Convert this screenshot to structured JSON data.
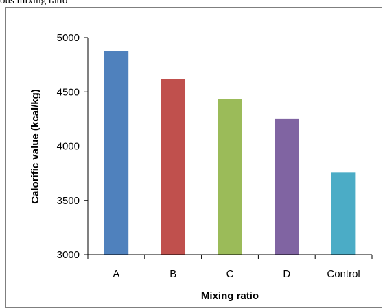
{
  "caption": "ous mixing ratio",
  "chart_data": {
    "type": "bar",
    "title": "",
    "xlabel": "Mixing ratio",
    "ylabel": "Calorific value (kcal/kg)",
    "categories": [
      "A",
      "B",
      "C",
      "D",
      "Control"
    ],
    "values": [
      4880,
      4620,
      4435,
      4250,
      3755
    ],
    "colors": [
      "#4f81bd",
      "#c0504d",
      "#9bbb59",
      "#8064a2",
      "#4bacc6"
    ],
    "ylim": [
      3000,
      5000
    ],
    "yticks": [
      "3000",
      "3500",
      "4000",
      "4500",
      "5000"
    ],
    "ytick_values": [
      3000,
      3500,
      4000,
      4500,
      5000
    ],
    "grid": false,
    "legend": "none"
  }
}
